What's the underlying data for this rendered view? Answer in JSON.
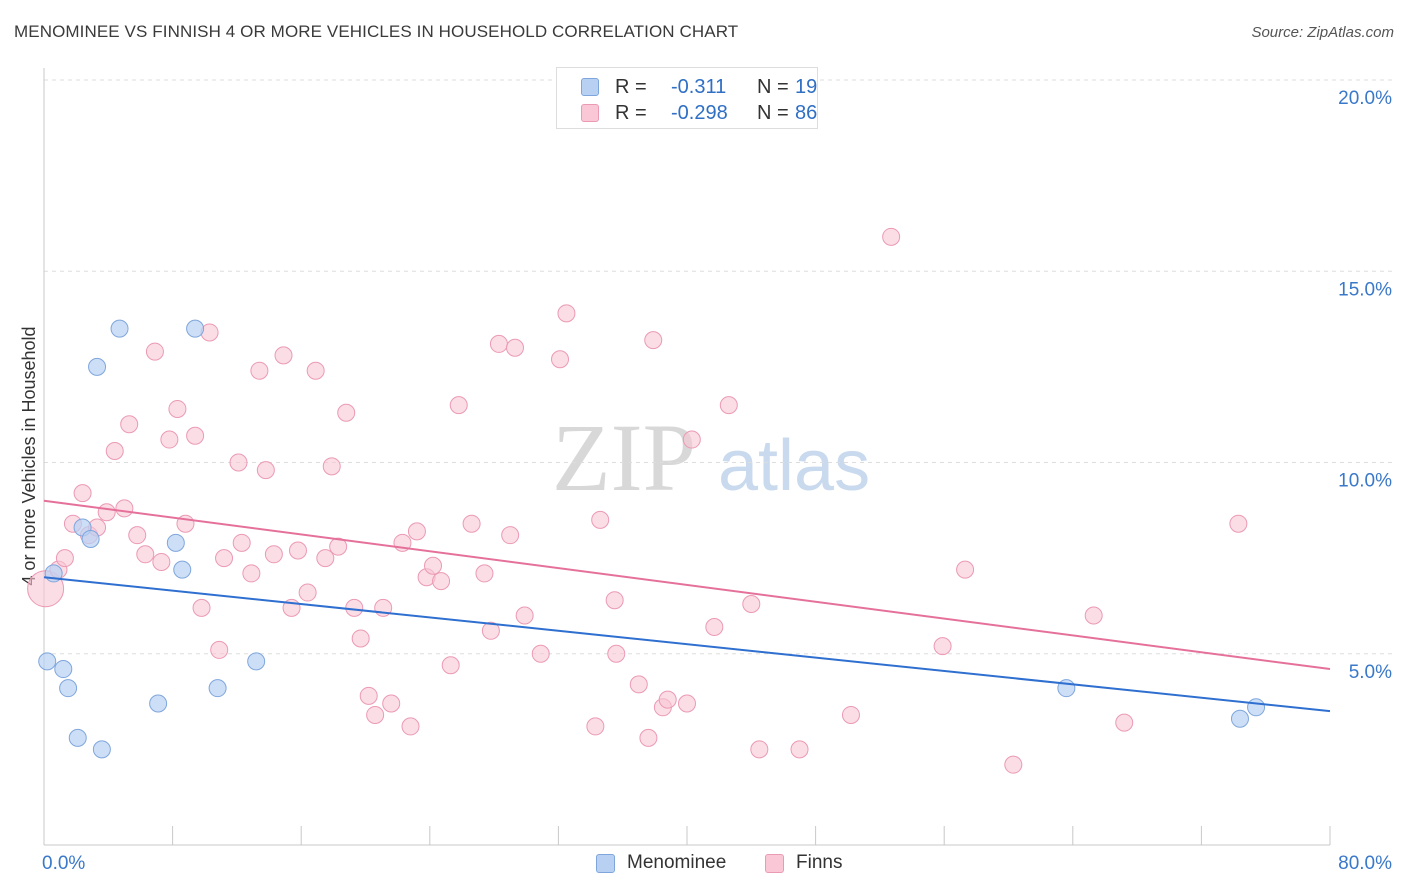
{
  "title": "MENOMINEE VS FINNISH 4 OR MORE VEHICLES IN HOUSEHOLD CORRELATION CHART",
  "source": "Source: ZipAtlas.com",
  "watermark": {
    "zip": "ZIP",
    "atlas": "atlas"
  },
  "legend_top": [
    {
      "r_label": "R =",
      "r_value": "-0.311",
      "n_label": "N =",
      "n_value": "19"
    },
    {
      "r_label": "R =",
      "r_value": "-0.298",
      "n_label": "N =",
      "n_value": "86"
    }
  ],
  "legend_bottom": [
    "Menominee",
    "Finns"
  ],
  "colors": {
    "menominee_fill": "#b8d1f3",
    "menominee_stroke": "#7fa6dc",
    "menominee_line": "#2e6fd0",
    "finns_fill": "#f9c7d6",
    "finns_stroke": "#eb9ab4",
    "finns_line": "#e5719b",
    "tick_text": "#3a78c9",
    "grid": "#dddddd"
  },
  "chart_data": {
    "type": "scatter",
    "title": "MENOMINEE VS FINNISH 4 OR MORE VEHICLES IN HOUSEHOLD CORRELATION CHART",
    "xlabel": "",
    "ylabel": "4 or more Vehicles in Household",
    "xlim": [
      0,
      80
    ],
    "ylim": [
      0,
      20
    ],
    "x_tick_labels": [
      "0.0%",
      "80.0%"
    ],
    "y_ticks": [
      5,
      10,
      15,
      20
    ],
    "y_tick_labels": [
      "5.0%",
      "10.0%",
      "15.0%",
      "20.0%"
    ],
    "grid": true,
    "legend_position": "top-center",
    "series": [
      {
        "name": "Menominee",
        "r": -0.311,
        "n": 19,
        "trend": {
          "x": [
            0,
            80
          ],
          "y": [
            7.0,
            3.5
          ]
        },
        "points": [
          [
            0.2,
            4.8
          ],
          [
            1.2,
            4.6
          ],
          [
            1.5,
            4.1
          ],
          [
            2.1,
            2.8
          ],
          [
            2.4,
            8.3
          ],
          [
            2.9,
            8.0
          ],
          [
            3.3,
            12.5
          ],
          [
            3.6,
            2.5
          ],
          [
            4.7,
            13.5
          ],
          [
            7.1,
            3.7
          ],
          [
            8.2,
            7.9
          ],
          [
            8.6,
            7.2
          ],
          [
            9.4,
            13.5
          ],
          [
            10.8,
            4.1
          ],
          [
            13.2,
            4.8
          ],
          [
            63.6,
            4.1
          ],
          [
            74.4,
            3.3
          ],
          [
            75.4,
            3.6
          ],
          [
            0.6,
            7.1
          ]
        ]
      },
      {
        "name": "Finns",
        "r": -0.298,
        "n": 86,
        "trend": {
          "x": [
            0,
            80
          ],
          "y": [
            9.0,
            4.6
          ]
        },
        "points": [
          [
            0.1,
            6.7
          ],
          [
            0.9,
            7.2
          ],
          [
            1.3,
            7.5
          ],
          [
            1.8,
            8.4
          ],
          [
            2.4,
            9.2
          ],
          [
            2.8,
            8.1
          ],
          [
            3.3,
            8.3
          ],
          [
            3.9,
            8.7
          ],
          [
            4.4,
            10.3
          ],
          [
            5.0,
            8.8
          ],
          [
            5.3,
            11.0
          ],
          [
            5.8,
            8.1
          ],
          [
            6.3,
            7.6
          ],
          [
            6.9,
            12.9
          ],
          [
            7.3,
            7.4
          ],
          [
            7.8,
            10.6
          ],
          [
            8.3,
            11.4
          ],
          [
            8.8,
            8.4
          ],
          [
            9.4,
            10.7
          ],
          [
            9.8,
            6.2
          ],
          [
            10.3,
            13.4
          ],
          [
            10.9,
            5.1
          ],
          [
            11.2,
            7.5
          ],
          [
            12.1,
            10.0
          ],
          [
            12.3,
            7.9
          ],
          [
            12.9,
            7.1
          ],
          [
            13.4,
            12.4
          ],
          [
            13.8,
            9.8
          ],
          [
            14.3,
            7.6
          ],
          [
            14.9,
            12.8
          ],
          [
            15.4,
            6.2
          ],
          [
            15.8,
            7.7
          ],
          [
            16.4,
            6.6
          ],
          [
            16.9,
            12.4
          ],
          [
            17.5,
            7.5
          ],
          [
            17.9,
            9.9
          ],
          [
            18.3,
            7.8
          ],
          [
            18.8,
            11.3
          ],
          [
            19.3,
            6.2
          ],
          [
            19.7,
            5.4
          ],
          [
            20.2,
            3.9
          ],
          [
            20.6,
            3.4
          ],
          [
            21.1,
            6.2
          ],
          [
            21.6,
            3.7
          ],
          [
            22.3,
            7.9
          ],
          [
            22.8,
            3.1
          ],
          [
            23.2,
            8.2
          ],
          [
            23.8,
            7.0
          ],
          [
            24.2,
            7.3
          ],
          [
            24.7,
            6.9
          ],
          [
            25.3,
            4.7
          ],
          [
            25.8,
            11.5
          ],
          [
            26.6,
            8.4
          ],
          [
            27.4,
            7.1
          ],
          [
            27.8,
            5.6
          ],
          [
            28.3,
            13.1
          ],
          [
            29.0,
            8.1
          ],
          [
            29.3,
            13.0
          ],
          [
            29.9,
            6.0
          ],
          [
            30.9,
            5.0
          ],
          [
            32.1,
            12.7
          ],
          [
            32.5,
            13.9
          ],
          [
            34.3,
            3.1
          ],
          [
            34.6,
            8.5
          ],
          [
            35.5,
            6.4
          ],
          [
            35.6,
            5.0
          ],
          [
            37.0,
            4.2
          ],
          [
            37.6,
            2.8
          ],
          [
            37.9,
            13.2
          ],
          [
            38.5,
            3.6
          ],
          [
            38.8,
            3.8
          ],
          [
            40.0,
            3.7
          ],
          [
            40.3,
            10.6
          ],
          [
            41.7,
            5.7
          ],
          [
            42.6,
            11.5
          ],
          [
            44.0,
            6.3
          ],
          [
            44.5,
            2.5
          ],
          [
            47.0,
            2.5
          ],
          [
            50.2,
            3.4
          ],
          [
            52.7,
            15.9
          ],
          [
            55.9,
            5.2
          ],
          [
            57.3,
            7.2
          ],
          [
            60.3,
            2.1
          ],
          [
            65.3,
            6.0
          ],
          [
            67.2,
            3.2
          ],
          [
            74.3,
            8.4
          ]
        ]
      }
    ]
  }
}
